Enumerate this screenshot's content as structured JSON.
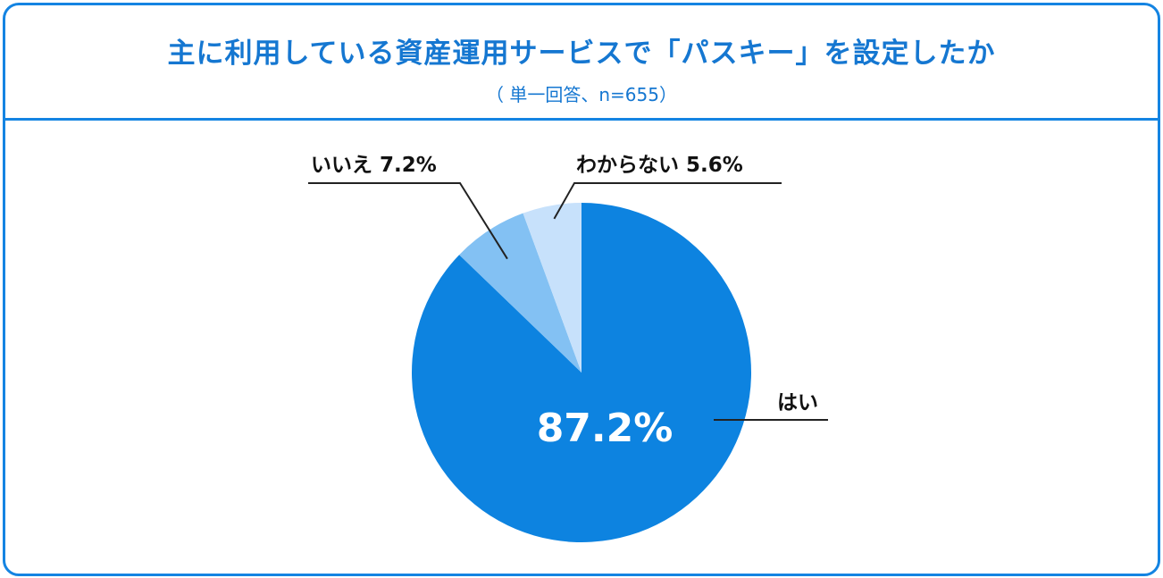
{
  "header": {
    "title": "主に利用している資産運用サービスで「パスキー」を設定したか",
    "subtitle": "（ 単一回答、n=655）"
  },
  "chart_data": {
    "type": "pie",
    "title": "主に利用している資産運用サービスで「パスキー」を設定したか",
    "subtitle": "（ 単一回答、n=655）",
    "slices": [
      {
        "label": "はい",
        "value": 87.2,
        "color": "#0d83e0",
        "display": "87.2%"
      },
      {
        "label": "いいえ",
        "value": 7.2,
        "color": "#83c1f3",
        "display": "7.2%"
      },
      {
        "label": "わからない",
        "value": 5.6,
        "color": "#c7e1fb",
        "display": "5.6%"
      }
    ],
    "start_angle": "12 o'clock",
    "direction": "clockwise"
  },
  "colors": {
    "accent": "#1484e2",
    "text": "#111111"
  }
}
